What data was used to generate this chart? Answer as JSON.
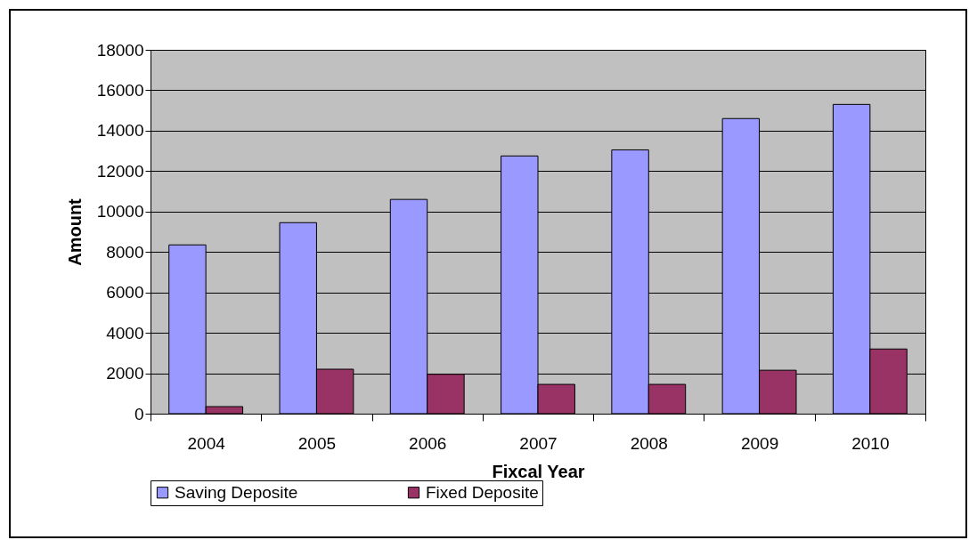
{
  "chart_data": {
    "type": "bar",
    "xlabel": "Fixcal Year",
    "ylabel": "Amount",
    "categories": [
      "2004",
      "2005",
      "2006",
      "2007",
      "2008",
      "2009",
      "2010"
    ],
    "series": [
      {
        "name": "Saving Deposite",
        "color": "#9999ff",
        "values": [
          8350,
          9450,
          10600,
          12750,
          13050,
          14600,
          15300
        ]
      },
      {
        "name": "Fixed Deposite",
        "color": "#993366",
        "values": [
          350,
          2200,
          1950,
          1450,
          1450,
          2150,
          3200
        ]
      }
    ],
    "ylim": [
      0,
      18000
    ],
    "yticks": [
      0,
      2000,
      4000,
      6000,
      8000,
      10000,
      12000,
      14000,
      16000,
      18000
    ],
    "grid": "y",
    "legend": "bottom"
  }
}
